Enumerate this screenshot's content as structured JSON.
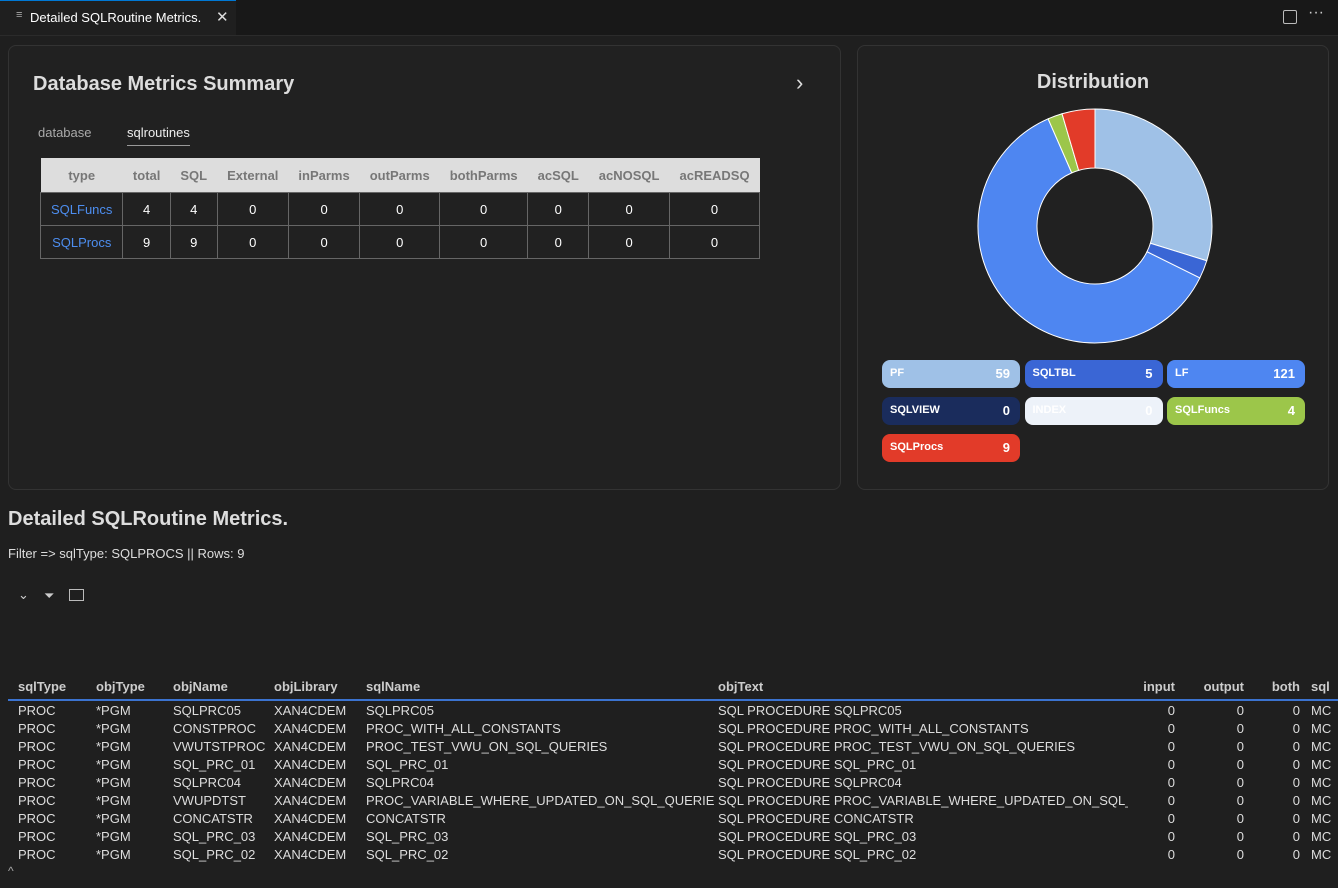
{
  "tab": {
    "title": "Detailed SQLRoutine Metrics."
  },
  "summary": {
    "title": "Database Metrics Summary",
    "tabs": [
      "database",
      "sqlroutines"
    ],
    "columns": [
      "type",
      "total",
      "SQL",
      "External",
      "inParms",
      "outParms",
      "bothParms",
      "acSQL",
      "acNOSQL",
      "acREADSQ"
    ],
    "rows": [
      [
        "SQLFuncs",
        4,
        4,
        0,
        0,
        0,
        0,
        0,
        0,
        0
      ],
      [
        "SQLProcs",
        9,
        9,
        0,
        0,
        0,
        0,
        0,
        0,
        0
      ]
    ]
  },
  "distribution": {
    "type": "pie",
    "title": "Distribution",
    "categories": [
      "PF",
      "SQLTBL",
      "LF",
      "SQLVIEW",
      "INDEX",
      "SQLFuncs",
      "SQLProcs"
    ],
    "values": [
      59,
      5,
      121,
      0,
      0,
      4,
      9
    ],
    "colors": [
      "#9fc1e7",
      "#3a66d5",
      "#4e86f1",
      "#1a2c5c",
      "#edf2f9",
      "#9cc64a",
      "#e23b29"
    ]
  },
  "detail": {
    "title": "Detailed SQLRoutine Metrics.",
    "filter": "Filter => sqlType: SQLPROCS || Rows: 9",
    "columns": [
      "sqlType",
      "objType",
      "objName",
      "objLibrary",
      "sqlName",
      "objText",
      "input",
      "output",
      "both",
      "sql"
    ],
    "rows": [
      [
        "PROC",
        "*PGM",
        "SQLPRC05",
        "XAN4CDEM",
        "SQLPRC05",
        "SQL PROCEDURE SQLPRC05",
        0,
        0,
        0,
        "MC"
      ],
      [
        "PROC",
        "*PGM",
        "CONSTPROC",
        "XAN4CDEM",
        "PROC_WITH_ALL_CONSTANTS",
        "SQL PROCEDURE PROC_WITH_ALL_CONSTANTS",
        0,
        0,
        0,
        "MC"
      ],
      [
        "PROC",
        "*PGM",
        "VWUTSTPROC",
        "XAN4CDEM",
        "PROC_TEST_VWU_ON_SQL_QUERIES",
        "SQL PROCEDURE PROC_TEST_VWU_ON_SQL_QUERIES",
        0,
        0,
        0,
        "MC"
      ],
      [
        "PROC",
        "*PGM",
        "SQL_PRC_01",
        "XAN4CDEM",
        "SQL_PRC_01",
        "SQL PROCEDURE SQL_PRC_01",
        0,
        0,
        0,
        "MC"
      ],
      [
        "PROC",
        "*PGM",
        "SQLPRC04",
        "XAN4CDEM",
        "SQLPRC04",
        "SQL PROCEDURE SQLPRC04",
        0,
        0,
        0,
        "MC"
      ],
      [
        "PROC",
        "*PGM",
        "VWUPDTST",
        "XAN4CDEM",
        "PROC_VARIABLE_WHERE_UPDATED_ON_SQL_QUERIES",
        "SQL PROCEDURE PROC_VARIABLE_WHERE_UPDATED_ON_SQL_",
        0,
        0,
        0,
        "MC"
      ],
      [
        "PROC",
        "*PGM",
        "CONCATSTR",
        "XAN4CDEM",
        "CONCATSTR",
        "SQL PROCEDURE CONCATSTR",
        0,
        0,
        0,
        "MC"
      ],
      [
        "PROC",
        "*PGM",
        "SQL_PRC_03",
        "XAN4CDEM",
        "SQL_PRC_03",
        "SQL PROCEDURE SQL_PRC_03",
        0,
        0,
        0,
        "MC"
      ],
      [
        "PROC",
        "*PGM",
        "SQL_PRC_02",
        "XAN4CDEM",
        "SQL_PRC_02",
        "SQL PROCEDURE SQL_PRC_02",
        0,
        0,
        0,
        "MC"
      ]
    ]
  }
}
